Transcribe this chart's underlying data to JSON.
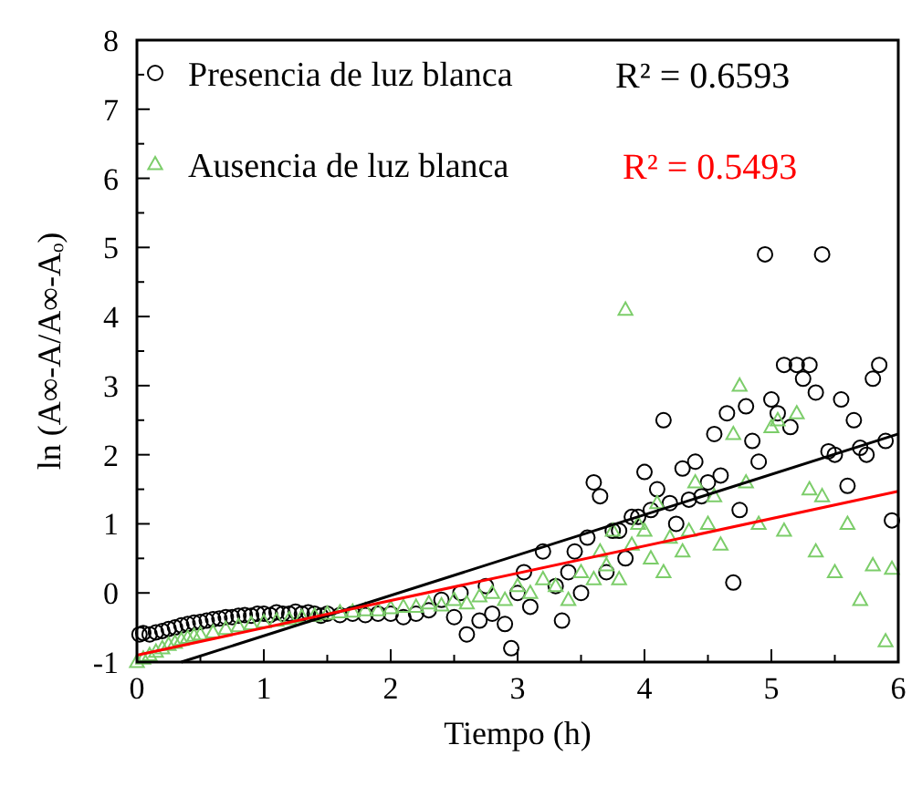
{
  "chart_data": {
    "type": "scatter",
    "xlabel": "Tiempo (h)",
    "ylabel": "ln (A∞-A/A∞-Aₒ)",
    "xlim": [
      0,
      6
    ],
    "ylim": [
      -1,
      8
    ],
    "xticks": [
      0,
      {
        "value": 0.5,
        "label": null
      },
      1,
      {
        "value": 1.5,
        "label": null
      },
      2,
      {
        "value": 2.5,
        "label": null
      },
      3,
      {
        "value": 3.5,
        "label": null
      },
      4,
      {
        "value": 4.5,
        "label": null
      },
      5,
      {
        "value": 5.5,
        "label": null
      },
      6
    ],
    "yticks": [
      -1,
      {
        "value": -0.5,
        "label": null
      },
      0,
      {
        "value": 0.5,
        "label": null
      },
      1,
      {
        "value": 1.5,
        "label": null
      },
      2,
      {
        "value": 2.5,
        "label": null
      },
      3,
      {
        "value": 3.5,
        "label": null
      },
      4,
      {
        "value": 4.5,
        "label": null
      },
      5,
      {
        "value": 5.5,
        "label": null
      },
      6,
      {
        "value": 6.5,
        "label": null
      },
      7,
      {
        "value": 7.5,
        "label": null
      },
      8
    ],
    "grid": false,
    "legend": "top left",
    "annotations": [
      "R² = 0.6593",
      "R² = 0.5493"
    ],
    "series": [
      {
        "name": "Presencia de luz blanca",
        "marker": "circle",
        "color": "#000000",
        "x": [
          0.02,
          0.05,
          0.1,
          0.15,
          0.2,
          0.25,
          0.3,
          0.35,
          0.4,
          0.45,
          0.5,
          0.55,
          0.6,
          0.65,
          0.7,
          0.75,
          0.8,
          0.85,
          0.9,
          0.95,
          1.0,
          1.05,
          1.1,
          1.15,
          1.2,
          1.25,
          1.3,
          1.35,
          1.4,
          1.45,
          1.5,
          1.6,
          1.7,
          1.8,
          1.9,
          2.0,
          2.1,
          2.2,
          2.3,
          2.4,
          2.5,
          2.55,
          2.6,
          2.7,
          2.75,
          2.8,
          2.9,
          2.95,
          3.0,
          3.05,
          3.1,
          3.2,
          3.3,
          3.35,
          3.4,
          3.45,
          3.5,
          3.55,
          3.6,
          3.65,
          3.7,
          3.75,
          3.8,
          3.85,
          3.9,
          3.95,
          4.0,
          4.05,
          4.1,
          4.15,
          4.2,
          4.25,
          4.3,
          4.35,
          4.4,
          4.45,
          4.5,
          4.55,
          4.6,
          4.65,
          4.7,
          4.75,
          4.8,
          4.85,
          4.9,
          4.95,
          5.0,
          5.05,
          5.1,
          5.15,
          5.2,
          5.25,
          5.3,
          5.35,
          5.4,
          5.45,
          5.5,
          5.55,
          5.6,
          5.65,
          5.7,
          5.75,
          5.8,
          5.85,
          5.9,
          5.95
        ],
        "values": [
          -0.6,
          -0.58,
          -0.6,
          -0.57,
          -0.55,
          -0.52,
          -0.5,
          -0.47,
          -0.45,
          -0.43,
          -0.42,
          -0.4,
          -0.38,
          -0.37,
          -0.35,
          -0.35,
          -0.33,
          -0.32,
          -0.33,
          -0.3,
          -0.3,
          -0.32,
          -0.28,
          -0.3,
          -0.3,
          -0.27,
          -0.3,
          -0.28,
          -0.3,
          -0.33,
          -0.3,
          -0.32,
          -0.3,
          -0.32,
          -0.3,
          -0.3,
          -0.35,
          -0.3,
          -0.25,
          -0.1,
          -0.35,
          0.0,
          -0.6,
          -0.4,
          0.1,
          -0.3,
          -0.45,
          -0.8,
          0.0,
          0.3,
          -0.2,
          0.6,
          0.1,
          -0.4,
          0.3,
          0.6,
          0.0,
          0.8,
          1.6,
          1.4,
          0.3,
          0.9,
          0.9,
          0.5,
          1.1,
          1.1,
          1.75,
          1.2,
          1.5,
          2.5,
          1.3,
          1.0,
          1.8,
          1.35,
          1.9,
          1.4,
          1.6,
          2.3,
          1.7,
          2.6,
          0.15,
          1.2,
          2.7,
          2.2,
          1.9,
          4.9,
          2.8,
          2.6,
          3.3,
          2.4,
          3.3,
          3.1,
          3.3,
          2.9,
          4.9,
          2.05,
          2.0,
          2.8,
          1.55,
          2.5,
          2.1,
          2.0,
          3.1,
          3.3,
          2.2,
          1.05
        ]
      },
      {
        "name": "Ausencia de luz blanca",
        "marker": "triangle",
        "color": "#7ccd6a",
        "x": [
          0.0,
          0.05,
          0.1,
          0.15,
          0.2,
          0.25,
          0.3,
          0.35,
          0.4,
          0.45,
          0.5,
          0.6,
          0.7,
          0.8,
          0.9,
          1.0,
          1.1,
          1.2,
          1.3,
          1.4,
          1.5,
          1.6,
          1.7,
          1.8,
          1.9,
          2.0,
          2.1,
          2.2,
          2.3,
          2.4,
          2.5,
          2.6,
          2.7,
          2.8,
          2.9,
          3.0,
          3.1,
          3.2,
          3.3,
          3.4,
          3.5,
          3.6,
          3.65,
          3.7,
          3.75,
          3.8,
          3.85,
          3.9,
          3.95,
          4.0,
          4.05,
          4.1,
          4.15,
          4.2,
          4.3,
          4.35,
          4.4,
          4.5,
          4.55,
          4.6,
          4.7,
          4.75,
          4.8,
          4.9,
          5.0,
          5.05,
          5.1,
          5.2,
          5.3,
          5.35,
          5.4,
          5.5,
          5.6,
          5.7,
          5.8,
          5.9,
          5.95
        ],
        "values": [
          -1.0,
          -0.95,
          -0.9,
          -0.85,
          -0.8,
          -0.75,
          -0.72,
          -0.68,
          -0.65,
          -0.62,
          -0.6,
          -0.57,
          -0.52,
          -0.48,
          -0.45,
          -0.42,
          -0.4,
          -0.38,
          -0.35,
          -0.33,
          -0.3,
          -0.28,
          -0.27,
          -0.25,
          -0.25,
          -0.22,
          -0.2,
          -0.2,
          -0.15,
          -0.18,
          -0.1,
          -0.15,
          -0.05,
          0.0,
          -0.1,
          0.1,
          0.0,
          0.2,
          0.1,
          -0.1,
          0.3,
          0.2,
          0.6,
          0.4,
          0.9,
          0.2,
          4.1,
          0.7,
          1.0,
          0.9,
          0.5,
          1.3,
          0.3,
          0.8,
          0.6,
          0.9,
          1.6,
          1.0,
          1.4,
          0.7,
          2.3,
          3.0,
          1.6,
          1.0,
          2.4,
          2.5,
          0.9,
          2.6,
          1.5,
          0.6,
          1.4,
          0.3,
          1.0,
          -0.1,
          0.4,
          -0.7,
          0.35
        ]
      },
      {
        "type": "line",
        "marker": "none",
        "color": "#000000",
        "x": [
          0.35,
          6
        ],
        "values": [
          -1,
          2.3
        ]
      },
      {
        "type": "line",
        "marker": "none",
        "color": "#ff0000",
        "x": [
          0,
          6
        ],
        "values": [
          -0.9,
          1.47
        ]
      }
    ]
  }
}
